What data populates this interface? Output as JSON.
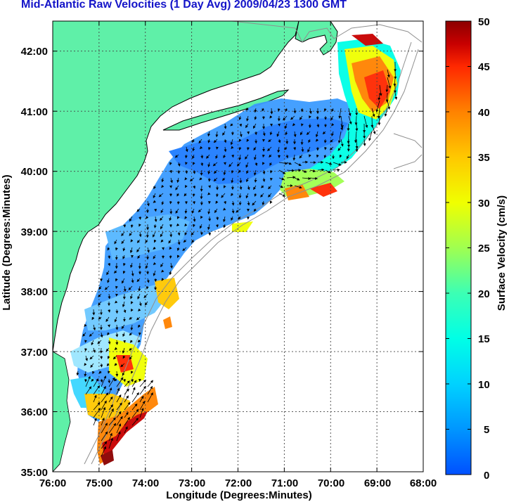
{
  "title": "Mid-Atlantic Raw Velocities (1 Day Avg) 2009/04/23 1300 GMT",
  "map": {
    "x_axis_label": "Longitude (Degrees:Minutes)",
    "y_axis_label": "Latitude (Degrees:Minutes)",
    "lon_ticks": [
      "76:00",
      "75:00",
      "74:00",
      "73:00",
      "72:00",
      "71:00",
      "70:00",
      "69:00",
      "68:00"
    ],
    "lat_ticks": [
      "35:00",
      "36:00",
      "37:00",
      "38:00",
      "39:00",
      "40:00",
      "41:00",
      "42:00"
    ],
    "lon_range": [
      -76,
      -68
    ],
    "lat_range": [
      35,
      42.5
    ],
    "land_color": "#5ff0a8",
    "ocean_color": "#ffffff",
    "grid": true
  },
  "colorbar": {
    "label": "Surface Velocity (cm/s)",
    "ticks": [
      "50",
      "45",
      "40",
      "35",
      "30",
      "25",
      "20",
      "15",
      "10",
      "5",
      "0"
    ],
    "range": [
      0,
      50
    ],
    "colors": [
      "#0050ff",
      "#0096ff",
      "#00d2ff",
      "#00ffe6",
      "#3cffb4",
      "#a0ff50",
      "#f0ff00",
      "#ffc800",
      "#ff8200",
      "#ff2800",
      "#c80000",
      "#8c0000"
    ]
  }
}
